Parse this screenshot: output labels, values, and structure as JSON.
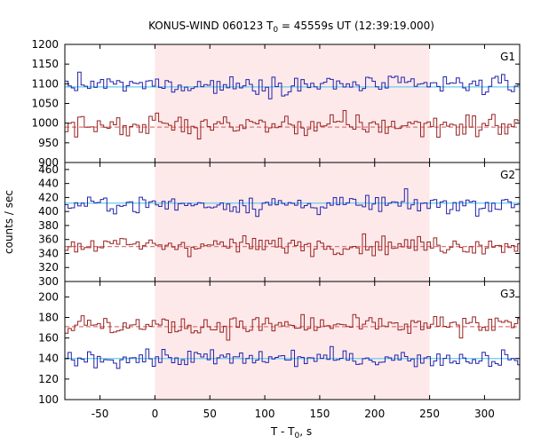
{
  "chart_data": {
    "type": "line",
    "title": {
      "prefix": "KONUS-WIND 060123 T",
      "sub": "0",
      "suffix": " = 45559s UT (12:39:19.000)"
    },
    "xlabel": {
      "prefix": "T - T",
      "sub": "0",
      "suffix": ", s"
    },
    "ylabel": "counts / sec",
    "xlim": [
      -82,
      332
    ],
    "xticks": [
      -50,
      0,
      50,
      100,
      150,
      200,
      250,
      300
    ],
    "bin_width_s": 2.944,
    "highlight_interval": [
      0,
      250
    ],
    "colors": {
      "blue": "#2222aa",
      "red": "#992222",
      "bg_blue": "#66ccee",
      "bg_red": "#dd7777",
      "highlight": "#fde9ea"
    },
    "panels": [
      {
        "label": "G1",
        "ylim": [
          900,
          1200
        ],
        "yticks": [
          900,
          950,
          1000,
          1050,
          1100,
          1150,
          1200
        ],
        "series": [
          {
            "color": "blue",
            "mean": 1097,
            "background": 1092,
            "spread": 16
          },
          {
            "color": "red",
            "mean": 995,
            "background": 990,
            "spread": 20
          }
        ]
      },
      {
        "label": "G2",
        "ylim": [
          300,
          470
        ],
        "yticks": [
          300,
          320,
          340,
          360,
          380,
          400,
          420,
          440,
          460
        ],
        "series": [
          {
            "color": "blue",
            "mean": 410,
            "background": 412,
            "spread": 9
          },
          {
            "color": "red",
            "mean": 352,
            "background": 350,
            "spread": 9
          }
        ]
      },
      {
        "label": "G3",
        "ylim": [
          100,
          215
        ],
        "yticks": [
          100,
          120,
          140,
          160,
          180,
          200
        ],
        "series": [
          {
            "color": "red",
            "mean": 172,
            "background": 171,
            "spread": 7
          },
          {
            "color": "blue",
            "mean": 140,
            "background": 140,
            "spread": 6
          }
        ]
      }
    ]
  }
}
